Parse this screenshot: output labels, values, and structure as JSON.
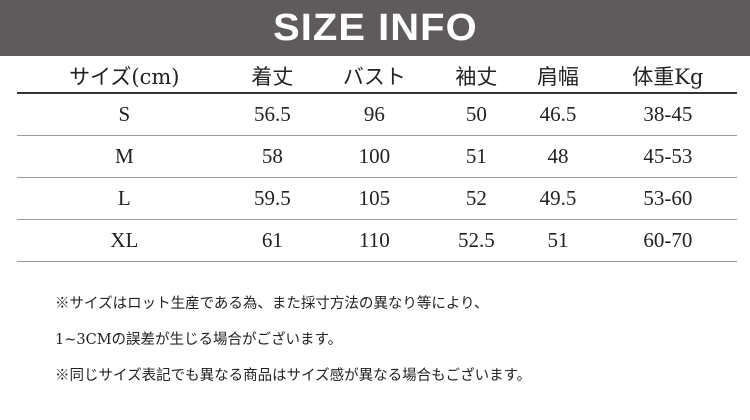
{
  "title": "SIZE INFO",
  "table": {
    "headers": [
      "サイズ(cm)",
      "着丈",
      "バスト",
      "袖丈",
      "肩幅",
      "体重Kg"
    ],
    "rows": [
      [
        "S",
        "56.5",
        "96",
        "50",
        "46.5",
        "38-45"
      ],
      [
        "M",
        "58",
        "100",
        "51",
        "48",
        "45-53"
      ],
      [
        "L",
        "59.5",
        "105",
        "52",
        "49.5",
        "53-60"
      ],
      [
        "XL",
        "61",
        "110",
        "52.5",
        "51",
        "60-70"
      ]
    ]
  },
  "notes": [
    "※サイズはロット生産である為、また採寸方法の異なり等により、",
    "1~3CMの誤差が生じる場合がございます。",
    "※同じサイズ表記でも異なる商品はサイズ感が異なる場合もございます。"
  ]
}
